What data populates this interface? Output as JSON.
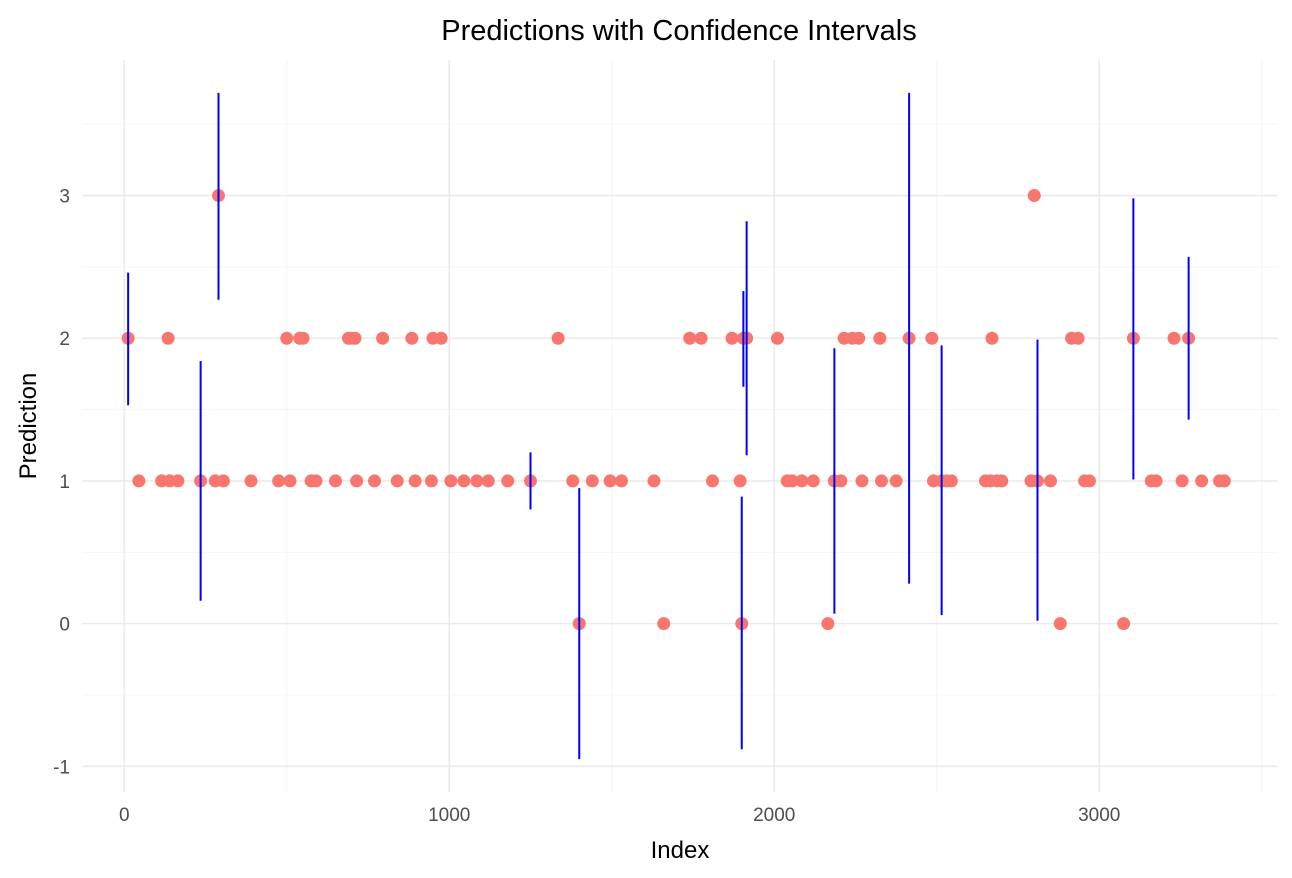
{
  "chart_data": {
    "type": "scatter",
    "title": "Predictions with Confidence Intervals",
    "xlabel": "Index",
    "ylabel": "Prediction",
    "xlim": [
      -130,
      3550
    ],
    "ylim": [
      -1.18,
      3.95
    ],
    "x_ticks": [
      0,
      1000,
      2000,
      3000
    ],
    "x_tick_labels": [
      "0",
      "1000",
      "2000",
      "3000"
    ],
    "y_ticks": [
      -1,
      0,
      1,
      2,
      3
    ],
    "y_tick_labels": [
      "-1",
      "0",
      "1",
      "2",
      "3"
    ],
    "grid": true,
    "legend": "none",
    "colors": {
      "point": "#f8766d",
      "interval": "#0000ff",
      "grid": "#ebebeb"
    },
    "points": [
      {
        "x": 12,
        "y": 2
      },
      {
        "x": 45,
        "y": 1
      },
      {
        "x": 115,
        "y": 1
      },
      {
        "x": 135,
        "y": 2
      },
      {
        "x": 140,
        "y": 1
      },
      {
        "x": 165,
        "y": 1
      },
      {
        "x": 235,
        "y": 1
      },
      {
        "x": 280,
        "y": 1
      },
      {
        "x": 290,
        "y": 3
      },
      {
        "x": 305,
        "y": 1
      },
      {
        "x": 390,
        "y": 1
      },
      {
        "x": 475,
        "y": 1
      },
      {
        "x": 500,
        "y": 2
      },
      {
        "x": 510,
        "y": 1
      },
      {
        "x": 540,
        "y": 2
      },
      {
        "x": 550,
        "y": 2
      },
      {
        "x": 575,
        "y": 1
      },
      {
        "x": 590,
        "y": 1
      },
      {
        "x": 650,
        "y": 1
      },
      {
        "x": 690,
        "y": 2
      },
      {
        "x": 700,
        "y": 2
      },
      {
        "x": 710,
        "y": 2
      },
      {
        "x": 715,
        "y": 1
      },
      {
        "x": 770,
        "y": 1
      },
      {
        "x": 795,
        "y": 2
      },
      {
        "x": 840,
        "y": 1
      },
      {
        "x": 885,
        "y": 2
      },
      {
        "x": 895,
        "y": 1
      },
      {
        "x": 945,
        "y": 1
      },
      {
        "x": 950,
        "y": 2
      },
      {
        "x": 975,
        "y": 2
      },
      {
        "x": 1005,
        "y": 1
      },
      {
        "x": 1045,
        "y": 1
      },
      {
        "x": 1085,
        "y": 1
      },
      {
        "x": 1120,
        "y": 1
      },
      {
        "x": 1180,
        "y": 1
      },
      {
        "x": 1250,
        "y": 1
      },
      {
        "x": 1335,
        "y": 2
      },
      {
        "x": 1380,
        "y": 1
      },
      {
        "x": 1400,
        "y": 0
      },
      {
        "x": 1440,
        "y": 1
      },
      {
        "x": 1495,
        "y": 1
      },
      {
        "x": 1530,
        "y": 1
      },
      {
        "x": 1630,
        "y": 1
      },
      {
        "x": 1660,
        "y": 0
      },
      {
        "x": 1740,
        "y": 2
      },
      {
        "x": 1775,
        "y": 2
      },
      {
        "x": 1810,
        "y": 1
      },
      {
        "x": 1870,
        "y": 2
      },
      {
        "x": 1895,
        "y": 1
      },
      {
        "x": 1900,
        "y": 0
      },
      {
        "x": 1905,
        "y": 2
      },
      {
        "x": 1915,
        "y": 2
      },
      {
        "x": 2010,
        "y": 2
      },
      {
        "x": 2040,
        "y": 1
      },
      {
        "x": 2055,
        "y": 1
      },
      {
        "x": 2085,
        "y": 1
      },
      {
        "x": 2120,
        "y": 1
      },
      {
        "x": 2165,
        "y": 0
      },
      {
        "x": 2185,
        "y": 1
      },
      {
        "x": 2205,
        "y": 1
      },
      {
        "x": 2215,
        "y": 2
      },
      {
        "x": 2240,
        "y": 2
      },
      {
        "x": 2260,
        "y": 2
      },
      {
        "x": 2270,
        "y": 1
      },
      {
        "x": 2325,
        "y": 2
      },
      {
        "x": 2330,
        "y": 1
      },
      {
        "x": 2375,
        "y": 1
      },
      {
        "x": 2415,
        "y": 2
      },
      {
        "x": 2485,
        "y": 2
      },
      {
        "x": 2490,
        "y": 1
      },
      {
        "x": 2515,
        "y": 1
      },
      {
        "x": 2530,
        "y": 1
      },
      {
        "x": 2545,
        "y": 1
      },
      {
        "x": 2650,
        "y": 1
      },
      {
        "x": 2665,
        "y": 1
      },
      {
        "x": 2670,
        "y": 2
      },
      {
        "x": 2685,
        "y": 1
      },
      {
        "x": 2700,
        "y": 1
      },
      {
        "x": 2790,
        "y": 1
      },
      {
        "x": 2800,
        "y": 3
      },
      {
        "x": 2810,
        "y": 1
      },
      {
        "x": 2850,
        "y": 1
      },
      {
        "x": 2880,
        "y": 0
      },
      {
        "x": 2915,
        "y": 2
      },
      {
        "x": 2935,
        "y": 2
      },
      {
        "x": 2955,
        "y": 1
      },
      {
        "x": 2970,
        "y": 1
      },
      {
        "x": 3075,
        "y": 0
      },
      {
        "x": 3105,
        "y": 2
      },
      {
        "x": 3160,
        "y": 1
      },
      {
        "x": 3175,
        "y": 1
      },
      {
        "x": 3230,
        "y": 2
      },
      {
        "x": 3255,
        "y": 1
      },
      {
        "x": 3275,
        "y": 2
      },
      {
        "x": 3315,
        "y": 1
      },
      {
        "x": 3370,
        "y": 1
      },
      {
        "x": 3385,
        "y": 1
      }
    ],
    "intervals": [
      {
        "x": 12,
        "low": 1.53,
        "high": 2.46
      },
      {
        "x": 235,
        "low": 0.16,
        "high": 1.84
      },
      {
        "x": 290,
        "low": 2.27,
        "high": 3.72
      },
      {
        "x": 1250,
        "low": 0.8,
        "high": 1.2
      },
      {
        "x": 1400,
        "low": -0.95,
        "high": 0.95
      },
      {
        "x": 1900,
        "low": -0.88,
        "high": 0.89
      },
      {
        "x": 1905,
        "low": 1.66,
        "high": 2.33
      },
      {
        "x": 1915,
        "low": 1.18,
        "high": 2.82
      },
      {
        "x": 2185,
        "low": 0.07,
        "high": 1.93
      },
      {
        "x": 2415,
        "low": 0.28,
        "high": 3.72
      },
      {
        "x": 2515,
        "low": 0.06,
        "high": 1.95
      },
      {
        "x": 2810,
        "low": 0.02,
        "high": 1.99
      },
      {
        "x": 3105,
        "low": 1.01,
        "high": 2.98
      },
      {
        "x": 3275,
        "low": 1.43,
        "high": 2.57
      }
    ]
  }
}
